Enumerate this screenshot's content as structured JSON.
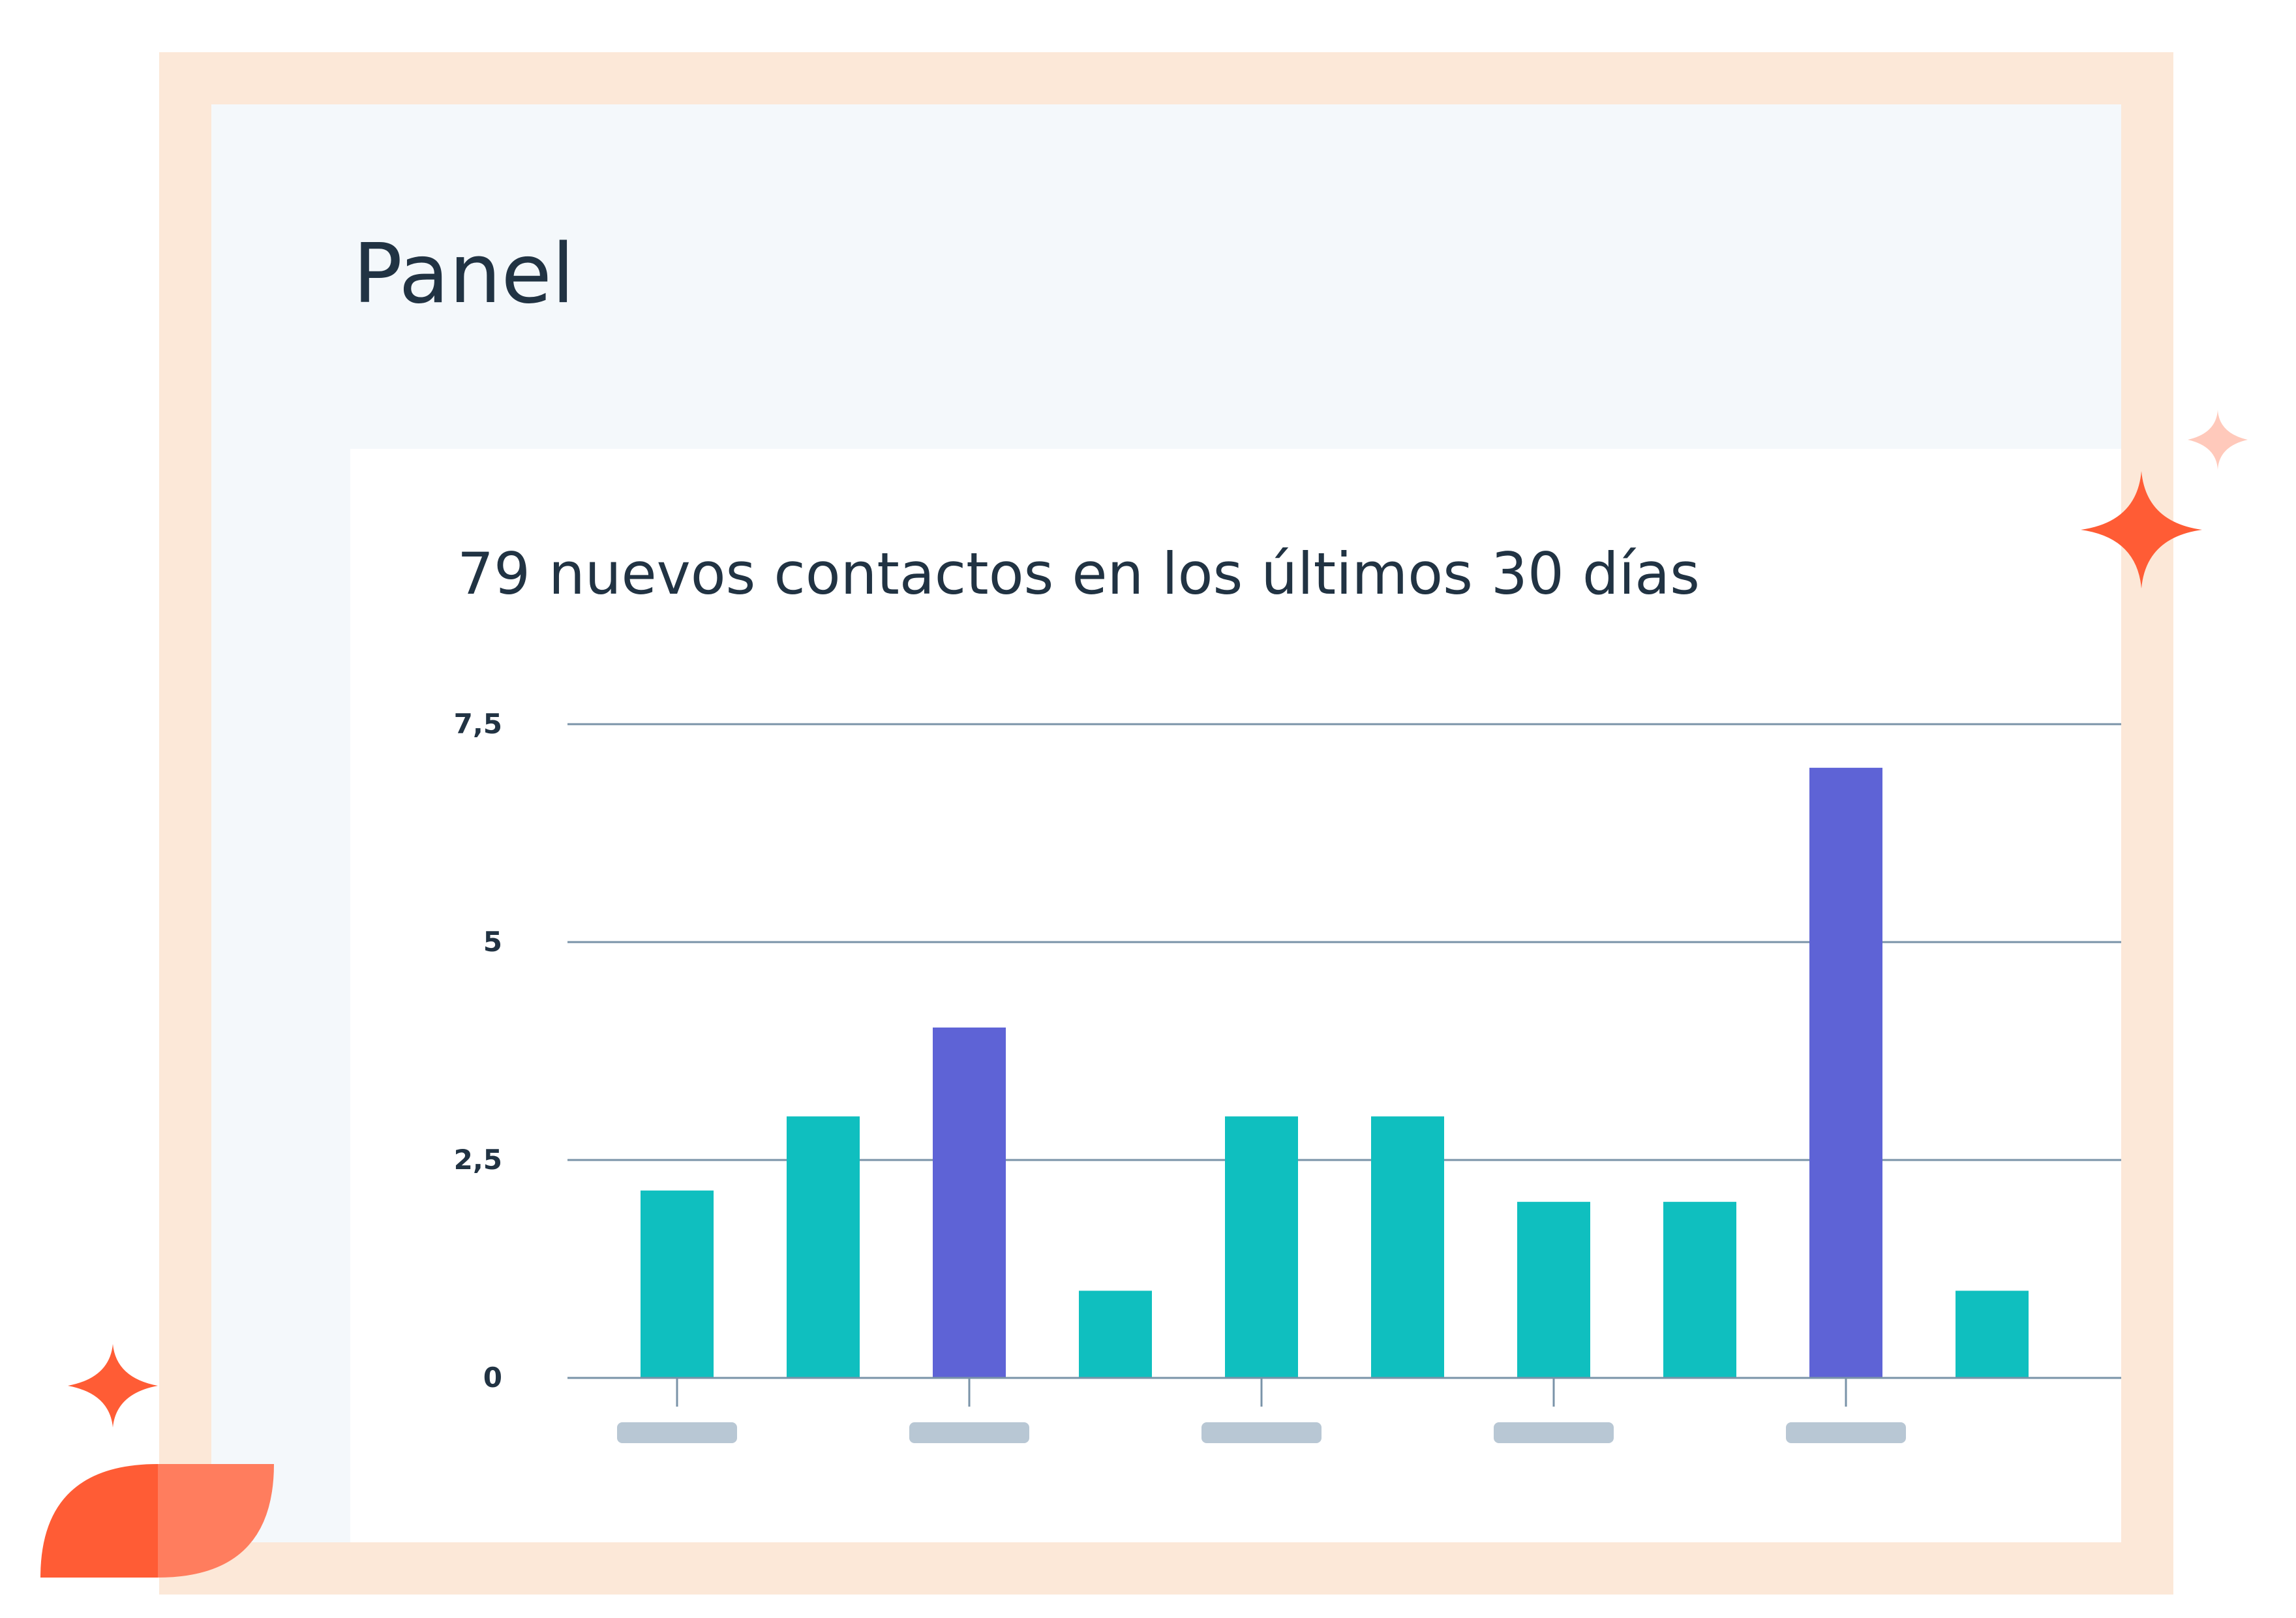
{
  "header": {
    "title": "Panel"
  },
  "chart_data": {
    "type": "bar",
    "title": "79 nuevos contactos en los últimos 30 días",
    "categories": [
      "",
      "",
      "",
      "",
      "",
      "",
      "",
      "",
      "",
      ""
    ],
    "values": [
      2.15,
      3,
      4.02,
      1,
      3,
      3,
      2.02,
      2.02,
      7,
      1
    ],
    "highlighted": [
      2,
      8
    ],
    "ylim": [
      0,
      7.5
    ],
    "yticks": [
      {
        "value": 0,
        "label": "0"
      },
      {
        "value": 2.5,
        "label": "2,5"
      },
      {
        "value": 5,
        "label": "5"
      },
      {
        "value": 7.5,
        "label": "7,5"
      }
    ],
    "xlabel": "",
    "ylabel": "",
    "grid": true,
    "colors": {
      "bar": "#0fbfbf",
      "highlight": "#5e63d6",
      "gridline": "#7a93a8",
      "tick_label": "#213343",
      "x_label_placeholder": "#b8c7d4"
    }
  },
  "colors": {
    "frame": "#fce8d8",
    "panel": "#f4f8fb",
    "card": "#ffffff",
    "text": "#213343",
    "sparkle_dark": "#ff5c35",
    "sparkle_light": "#ffc9bb",
    "leaf_dark": "#ff5c35",
    "leaf_light": "#ff7d5e"
  }
}
